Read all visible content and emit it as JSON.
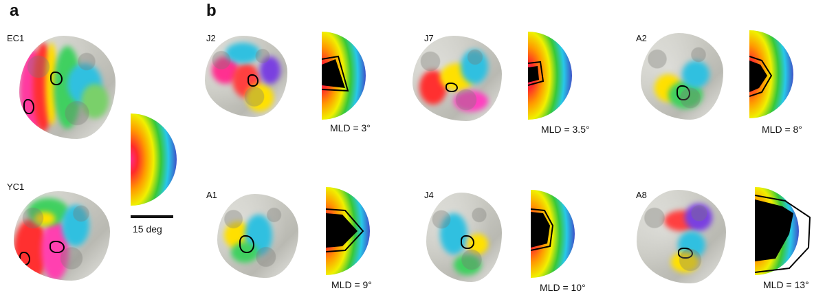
{
  "panel_a": {
    "letter": "a",
    "subjects": [
      "EC1",
      "YC1"
    ],
    "scale_label": "15 deg"
  },
  "panel_b": {
    "letter": "b",
    "subjects": [
      {
        "id": "J2",
        "mld": "MLD = 3°"
      },
      {
        "id": "J7",
        "mld": "MLD = 3.5°"
      },
      {
        "id": "A2",
        "mld": "MLD = 8°"
      },
      {
        "id": "A1",
        "mld": "MLD = 9°"
      },
      {
        "id": "J4",
        "mld": "MLD = 10°"
      },
      {
        "id": "A8",
        "mld": "MLD = 13°"
      }
    ]
  },
  "colors": {
    "ring_center": "#ff2a8a",
    "ring_red": "#ff2a2a",
    "ring_orange": "#ff9a00",
    "ring_yellow": "#f0f000",
    "ring_green": "#38c838",
    "ring_cyan": "#28c8e8",
    "ring_blue": "#3e52c8"
  }
}
